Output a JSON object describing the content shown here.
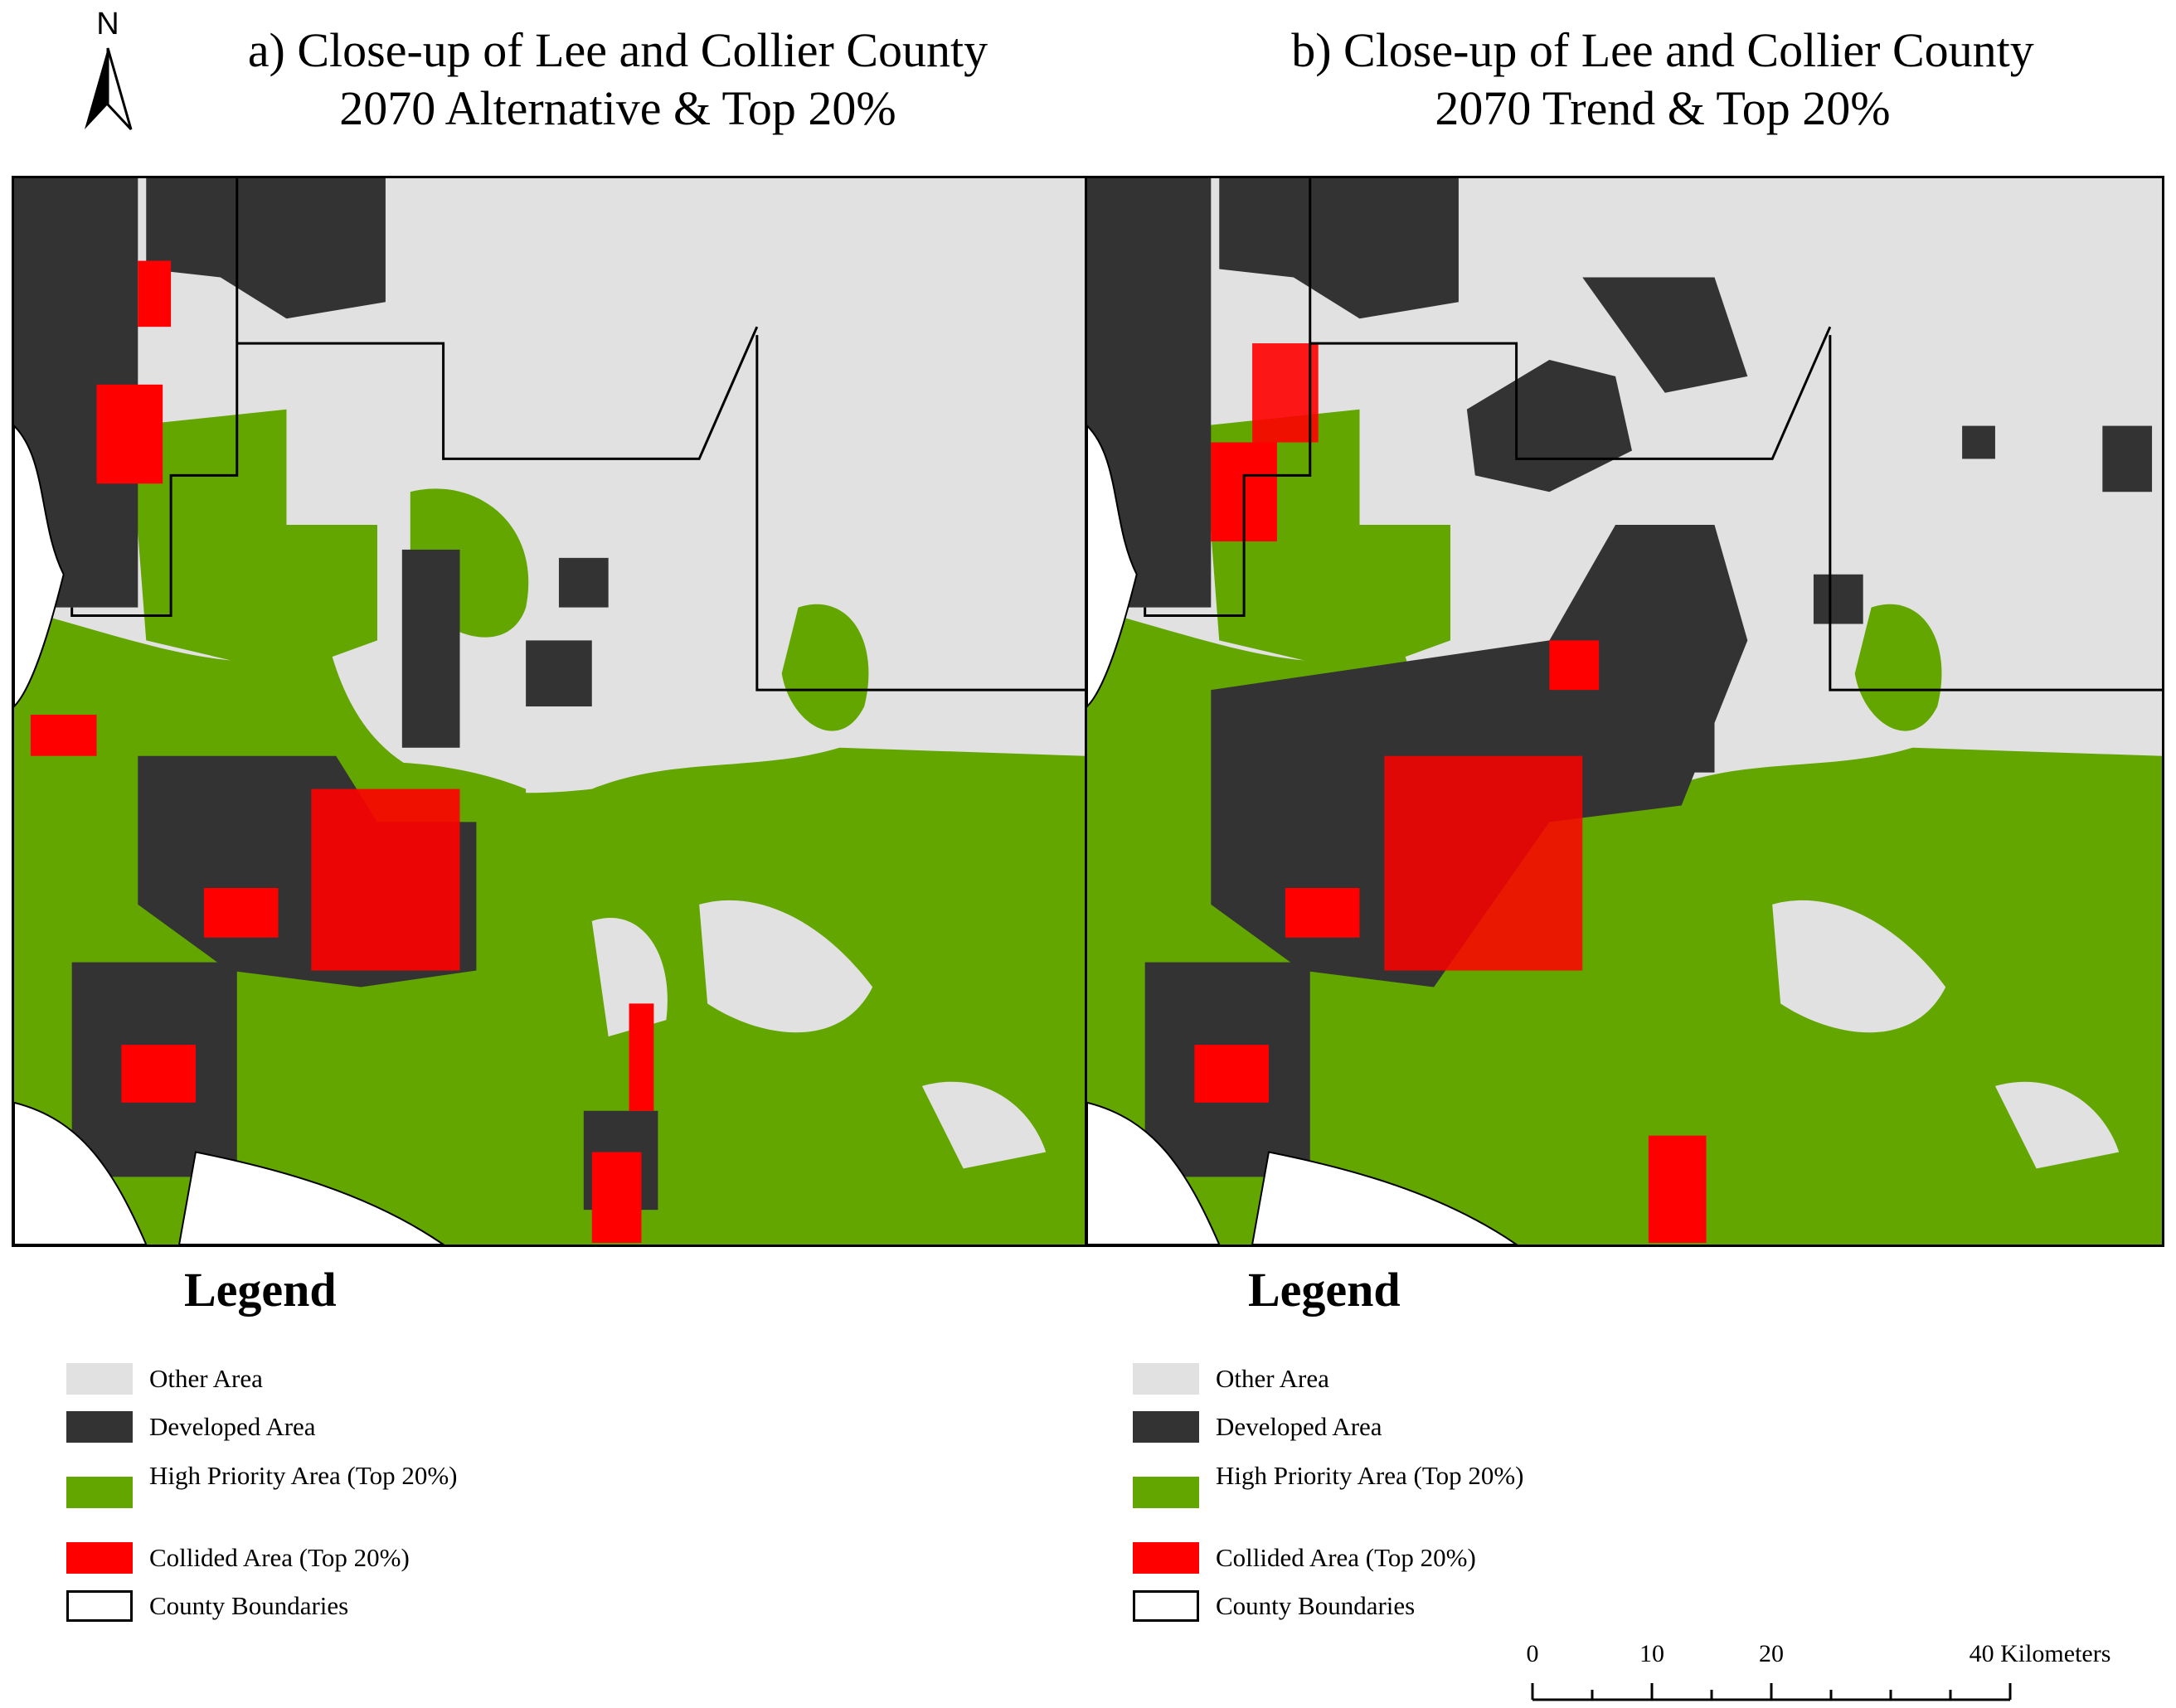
{
  "north_arrow": {
    "letter": "N"
  },
  "panels": [
    {
      "id": "a",
      "title_line1": "a) Close-up of Lee and Collier County",
      "title_line2": "2070 Alternative & Top 20%",
      "legend_title": "Legend"
    },
    {
      "id": "b",
      "title_line1": "b) Close-up of Lee and Collier County",
      "title_line2": "2070 Trend & Top 20%",
      "legend_title": "Legend"
    }
  ],
  "legend_items": [
    {
      "label": "Other Area",
      "color": "#e1e1e1"
    },
    {
      "label": "Developed Area",
      "color": "#333333"
    },
    {
      "label": "High Priority Area (Top 20%)",
      "color": "#63a600"
    },
    {
      "label": "Collided Area (Top 20%)",
      "color": "#ff0000"
    },
    {
      "label": "County Boundaries",
      "color": "#ffffff"
    }
  ],
  "scale_bar": {
    "labels": [
      "0",
      "10",
      "20",
      "40 Kilometers"
    ]
  }
}
